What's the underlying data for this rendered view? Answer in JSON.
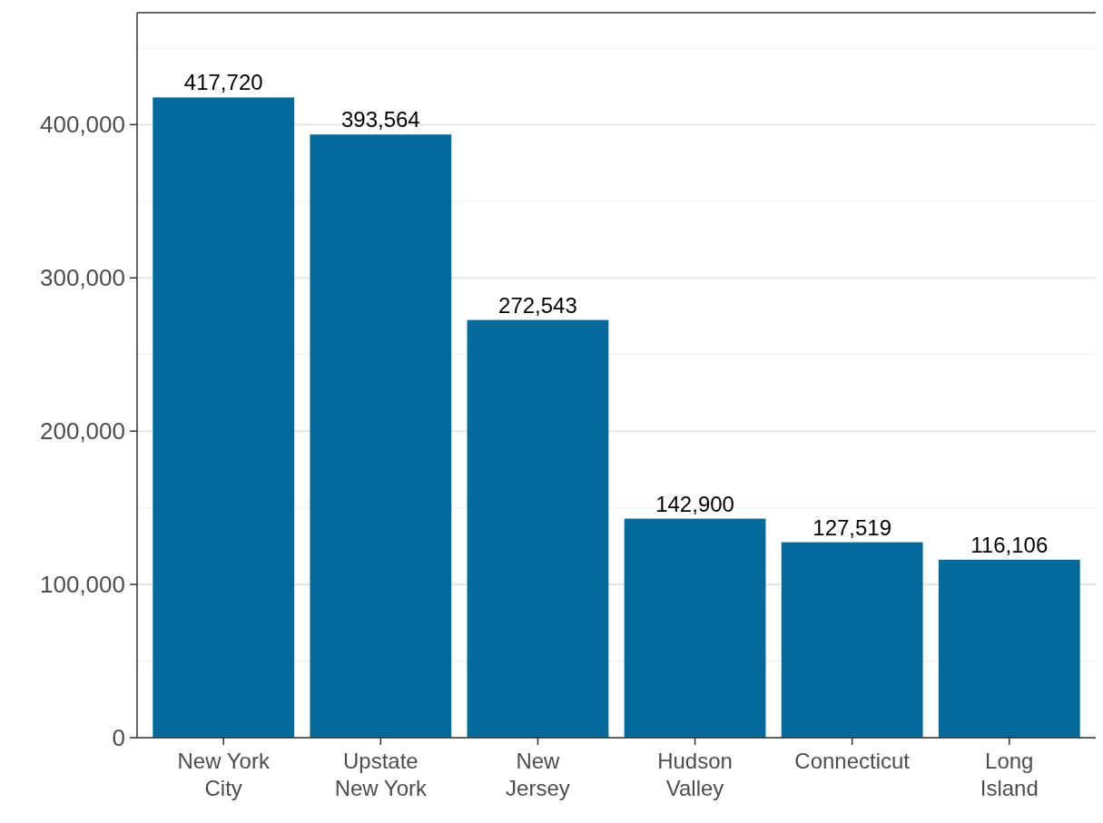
{
  "chart_data": {
    "type": "bar",
    "categories": [
      "New York City",
      "Upstate New York",
      "New Jersey",
      "Hudson Valley",
      "Connecticut",
      "Long Island"
    ],
    "values": [
      417720,
      393564,
      272543,
      142900,
      127519,
      116106
    ],
    "value_labels": [
      "417,720",
      "393,564",
      "272,543",
      "142,900",
      "127,519",
      "116,106"
    ],
    "color": "#036a9b",
    "grid": "y",
    "ylim": [
      0,
      473000
    ],
    "yticks": [
      0,
      {
        "value": 50000,
        "label": null
      },
      {
        "value": 100000,
        "label": "100,000"
      },
      {
        "value": 150000,
        "label": null
      },
      {
        "value": 200000,
        "label": "200,000"
      },
      {
        "value": 250000,
        "label": null
      },
      {
        "value": 300000,
        "label": "300,000"
      },
      {
        "value": 350000,
        "label": null
      },
      {
        "value": 400000,
        "label": "400,000"
      },
      {
        "value": 450000,
        "label": null
      }
    ]
  }
}
